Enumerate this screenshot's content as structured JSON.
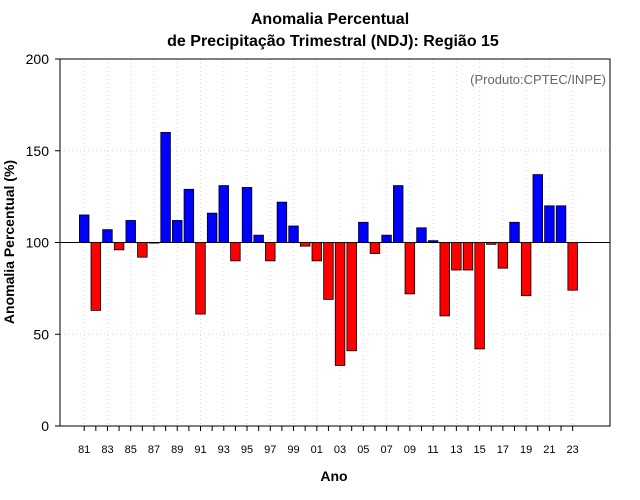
{
  "chart_data": {
    "type": "bar",
    "title": "Anomalia Percentual",
    "subtitle": "de Precipitação Trimestral (NDJ): Região 15",
    "credit": "(Produto:CPTEC/INPE)",
    "xlabel": "Ano",
    "ylabel": "Anomalia Percentual (%)",
    "ylim": [
      0,
      200
    ],
    "yticks": [
      0,
      50,
      100,
      150,
      200
    ],
    "baseline": 100,
    "grid": true,
    "colors": {
      "above": "#0000ff",
      "below": "#ff0000",
      "outline": "#000000",
      "grid": "#d8d8d8",
      "baseline": "#000000"
    },
    "xtick_labels": [
      "81",
      "83",
      "85",
      "87",
      "89",
      "91",
      "93",
      "95",
      "97",
      "99",
      "01",
      "03",
      "05",
      "07",
      "09",
      "11",
      "13",
      "15",
      "17",
      "19",
      "21",
      "23"
    ],
    "categories": [
      "1981",
      "1982",
      "1983",
      "1984",
      "1985",
      "1986",
      "1987",
      "1988",
      "1989",
      "1990",
      "1991",
      "1992",
      "1993",
      "1994",
      "1995",
      "1996",
      "1997",
      "1998",
      "1999",
      "2000",
      "2001",
      "2002",
      "2003",
      "2004",
      "2005",
      "2006",
      "2007",
      "2008",
      "2009",
      "2010",
      "2011",
      "2012",
      "2013",
      "2014",
      "2015",
      "2016",
      "2017",
      "2018",
      "2019",
      "2020",
      "2021",
      "2022",
      "2023"
    ],
    "values": [
      115,
      63,
      107,
      96,
      112,
      92,
      100,
      160,
      112,
      129,
      61,
      116,
      131,
      90,
      130,
      104,
      90,
      122,
      109,
      98,
      90,
      69,
      33,
      41,
      111,
      94,
      104,
      131,
      72,
      108,
      101,
      60,
      85,
      85,
      42,
      99,
      86,
      111,
      71,
      137,
      120,
      120,
      74
    ]
  }
}
